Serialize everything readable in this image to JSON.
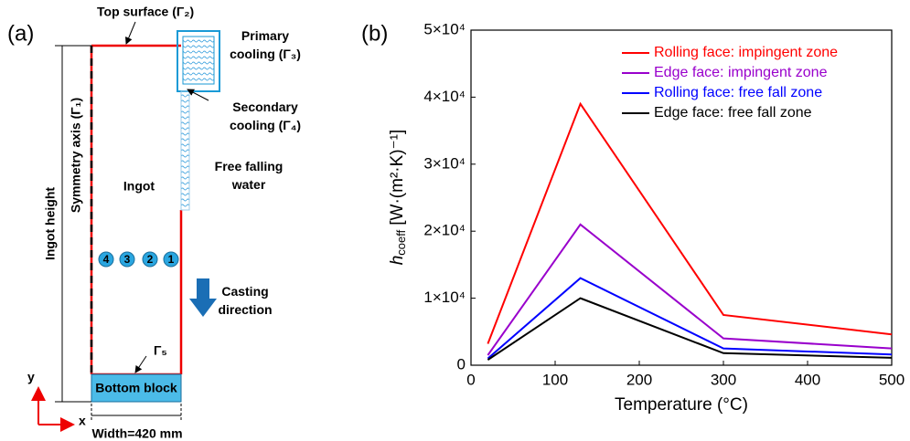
{
  "diagram": {
    "panel_label": "(a)",
    "top_surface": "Top surface (Γ₂)",
    "primary_cooling": [
      "Primary",
      "cooling (Γ₃)"
    ],
    "secondary_cooling": [
      "Secondary",
      "cooling (Γ₄)"
    ],
    "free_falling_water": [
      "Free falling",
      "water"
    ],
    "ingot": "Ingot",
    "ingot_height": "Ingot height",
    "symmetry_axis": "Symmetry axis (Γ₁)",
    "casting_direction": [
      "Casting",
      "direction"
    ],
    "gamma5": "Γ₅",
    "bottom_block": "Bottom block",
    "width": "Width=420 mm",
    "axis_y": "y",
    "axis_x": "x",
    "points": [
      "4",
      "3",
      "2",
      "1"
    ]
  },
  "chart_data": {
    "type": "line",
    "panel_label": "(b)",
    "x_label": "Temperature (°C)",
    "y_label": {
      "symbol": "h",
      "subscript": "coeff",
      "unit": "[W·(m²·K)⁻¹]"
    },
    "x": [
      20,
      130,
      300,
      500
    ],
    "series": [
      {
        "name": "Rolling face: impingent zone",
        "color": "#ff0000",
        "values": [
          3200,
          39000,
          7500,
          4600
        ]
      },
      {
        "name": "Edge face: impingent zone",
        "color": "#9900cc",
        "values": [
          1500,
          21000,
          4000,
          2500
        ]
      },
      {
        "name": "Rolling face: free fall zone",
        "color": "#0000ff",
        "values": [
          1000,
          13000,
          2500,
          1600
        ]
      },
      {
        "name": "Edge face: free fall zone",
        "color": "#000000",
        "values": [
          800,
          10000,
          1800,
          1100
        ]
      }
    ],
    "xlim": [
      0,
      500
    ],
    "xticks": [
      0,
      100,
      200,
      300,
      400,
      500
    ],
    "ylim": [
      0,
      50000
    ],
    "yticks": [
      0,
      {
        "value": 10000,
        "label": "1×10⁴"
      },
      {
        "value": 20000,
        "label": "2×10⁴"
      },
      {
        "value": 30000,
        "label": "3×10⁴"
      },
      {
        "value": 40000,
        "label": "4×10⁴"
      },
      {
        "value": 50000,
        "label": "5×10⁴"
      }
    ],
    "legend": "upper right"
  }
}
